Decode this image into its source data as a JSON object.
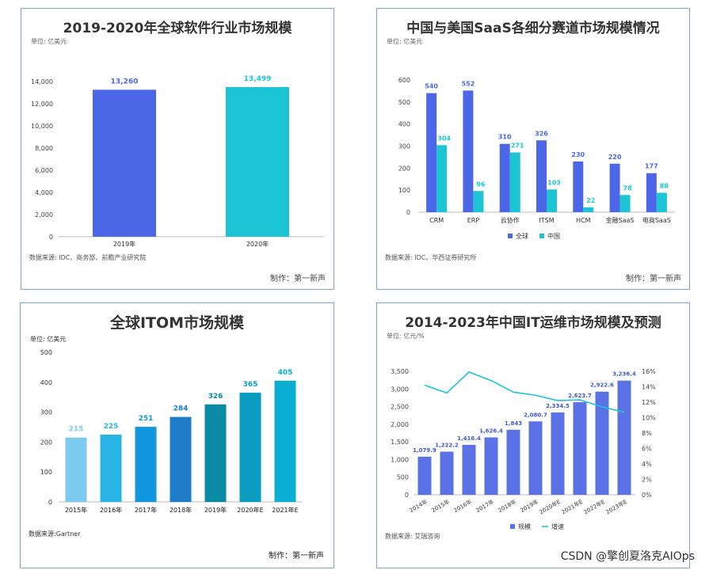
{
  "chart_data": [
    {
      "type": "bar",
      "title": "2019-2020年全球软件行业市场规模",
      "unit": "单位: 亿美元",
      "categories": [
        "2019年",
        "2020年"
      ],
      "values": [
        13260,
        13499
      ],
      "value_labels": [
        "13,260",
        "13,499"
      ],
      "ylim": [
        0,
        14000
      ],
      "yticks": [
        0,
        2000,
        4000,
        6000,
        8000,
        10000,
        12000,
        14000
      ],
      "ytick_labels": [
        "0",
        "2,000",
        "4,000",
        "6,000",
        "8,000",
        "10,000",
        "12,000",
        "14,000"
      ],
      "colors": [
        "#4b67e8",
        "#1cc4d4"
      ],
      "source": "数据来源: IDC、商务部、前瞻产业研究院",
      "maker": "制作：第一新声"
    },
    {
      "type": "bar",
      "title": "中国与美国SaaS各细分赛道市场规模情况",
      "unit": "单位: 亿美元",
      "categories": [
        "CRM",
        "ERP",
        "云协作",
        "ITSM",
        "HCM",
        "金融SaaS",
        "电商SaaS"
      ],
      "series": [
        {
          "name": "全球",
          "values": [
            540,
            552,
            310,
            326,
            230,
            220,
            177
          ],
          "color": "#4b67e8"
        },
        {
          "name": "中国",
          "values": [
            304,
            96,
            271,
            103,
            22,
            78,
            88
          ],
          "color": "#1cc4d4"
        }
      ],
      "ylim": [
        0,
        600
      ],
      "yticks": [
        0,
        100,
        200,
        300,
        400,
        500,
        600
      ],
      "legend": "bottom",
      "source": "数据来源: IDC、华西证券研究所",
      "maker": "制作：第一新声"
    },
    {
      "type": "bar",
      "title": "全球ITOM市场规模",
      "unit": "单位: 亿美元",
      "categories": [
        "2015年",
        "2016年",
        "2017年",
        "2018年",
        "2019年",
        "2020年E",
        "2021年E"
      ],
      "values": [
        215,
        225,
        251,
        284,
        326,
        365,
        405
      ],
      "colors": [
        "#7ccaf0",
        "#29b4e6",
        "#1296de",
        "#1f7cc9",
        "#0a8aa5",
        "#0a9cc0",
        "#0aaed0"
      ],
      "ylim": [
        0,
        500
      ],
      "yticks": [
        0,
        100,
        200,
        300,
        400,
        500
      ],
      "source": "数据来源:Gartner",
      "maker": "制作：第一新声"
    },
    {
      "type": "bar",
      "title": "2014-2023年中国IT运维市场规模及预测",
      "unit": "单位: 亿元/%",
      "categories": [
        "2014年",
        "2015年",
        "2016年",
        "2017年",
        "2018年",
        "2019年",
        "2020年E",
        "2021年E",
        "2022年E",
        "2023年E"
      ],
      "series": [
        {
          "name": "规模",
          "type": "bar",
          "values": [
            1079.9,
            1222.2,
            1416.4,
            1626.4,
            1843,
            2080.7,
            2334.5,
            2623.7,
            2922.6,
            3236.4
          ],
          "labels": [
            "1,079.9",
            "1,222.2",
            "1,416.4",
            "1,626.4",
            "1,843",
            "2,080.7",
            "2,334.5",
            "2,623.7",
            "2,922.6",
            "3,236.4"
          ],
          "color": "#5b72e6"
        },
        {
          "name": "增速",
          "type": "line",
          "values": [
            14.2,
            13.2,
            15.9,
            14.8,
            13.3,
            12.9,
            12.2,
            12.3,
            11.4,
            10.7
          ],
          "color": "#1cc4d4"
        }
      ],
      "ylim": [
        0,
        3500
      ],
      "yticks": [
        0,
        500,
        1000,
        1500,
        2000,
        2500,
        3000,
        3500
      ],
      "ytick_labels": [
        "0",
        "500",
        "1,000",
        "1,500",
        "2,000",
        "2,500",
        "3,000",
        "3,500"
      ],
      "y2lim": [
        0,
        16
      ],
      "y2ticks": [
        "0%",
        "2%",
        "4%",
        "6%",
        "8%",
        "10%",
        "12%",
        "14%",
        "16%"
      ],
      "legend": "bottom",
      "source": "数据来源: 艾瑞咨询"
    }
  ],
  "watermark": "CSDN @擎创夏洛克AIOps"
}
